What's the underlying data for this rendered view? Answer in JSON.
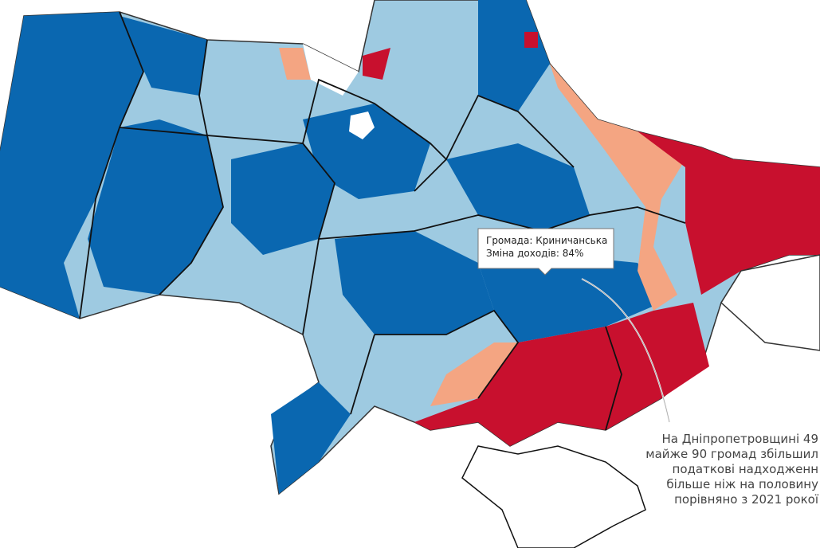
{
  "tooltip": {
    "lines": [
      "Громада: Криничанська",
      "Зміна доходів: 84%"
    ]
  },
  "annotation": {
    "lines": [
      "На Дніпропетровщині 49",
      "майже 90 громад збільшил",
      "податкові надходженн",
      "більше ніж на половину",
      "порівняно з 2021 рокої"
    ]
  }
}
